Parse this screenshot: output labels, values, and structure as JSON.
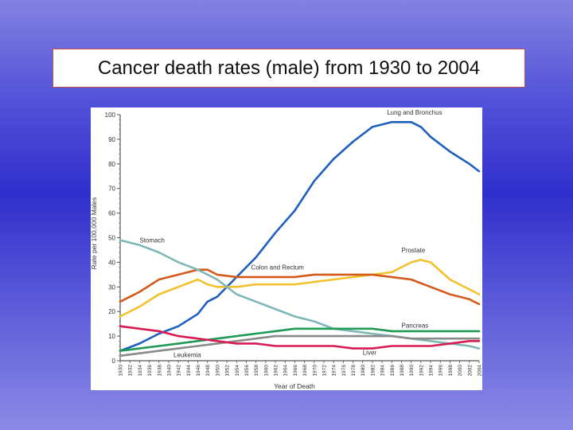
{
  "slide": {
    "title": "Cancer death rates (male) from 1930 to 2004"
  },
  "colors": {
    "background": "#4040d4",
    "title_border": "#c0504d",
    "lung": "#1f5fbf",
    "prostate": "#f2c12e",
    "colon": "#d45a1c",
    "stomach": "#7fb7b7",
    "pancreas": "#1f9a55",
    "leukemia": "#8a8a8a",
    "liver": "#d81b54"
  },
  "chart_data": {
    "type": "line",
    "xlabel": "Year of Death",
    "ylabel": "Rate per 100,000 Males",
    "xlim": [
      1930,
      2004
    ],
    "ylim": [
      0,
      100
    ],
    "y_ticks": [
      0,
      10,
      20,
      30,
      40,
      50,
      60,
      70,
      80,
      90,
      100
    ],
    "x_ticks": [
      "1930",
      "1932",
      "1934",
      "1936",
      "1938",
      "1940",
      "1942",
      "1944",
      "1946",
      "1948",
      "1950",
      "1952",
      "1954",
      "1956",
      "1958",
      "1960",
      "1962",
      "1964",
      "1966",
      "1968",
      "1970",
      "1972",
      "1974",
      "1976",
      "1978",
      "1980",
      "1982",
      "1984",
      "1986",
      "1988",
      "1990",
      "1992",
      "1994",
      "1996",
      "1998",
      "2000",
      "2002",
      "2004"
    ],
    "grid": false,
    "series": [
      {
        "name": "Lung and Bronchus",
        "color_key": "lung",
        "x": [
          1930,
          1934,
          1938,
          1942,
          1946,
          1948,
          1950,
          1954,
          1958,
          1962,
          1966,
          1970,
          1974,
          1978,
          1982,
          1986,
          1990,
          1992,
          1994,
          1998,
          2002,
          2004
        ],
        "y": [
          4,
          7,
          11,
          14,
          19,
          24,
          26,
          34,
          42,
          52,
          61,
          73,
          82,
          89,
          95,
          97,
          97,
          95,
          91,
          85,
          80,
          77
        ]
      },
      {
        "name": "Prostate",
        "color_key": "prostate",
        "x": [
          1930,
          1934,
          1938,
          1942,
          1946,
          1948,
          1950,
          1954,
          1958,
          1962,
          1966,
          1970,
          1974,
          1978,
          1982,
          1986,
          1990,
          1992,
          1994,
          1998,
          2002,
          2004
        ],
        "y": [
          18,
          22,
          27,
          30,
          33,
          31,
          30,
          30,
          31,
          31,
          31,
          32,
          33,
          34,
          35,
          36,
          40,
          41,
          40,
          33,
          29,
          27
        ]
      },
      {
        "name": "Colon and Rectum",
        "color_key": "colon",
        "x": [
          1930,
          1934,
          1938,
          1942,
          1946,
          1948,
          1950,
          1954,
          1958,
          1962,
          1966,
          1970,
          1974,
          1978,
          1982,
          1986,
          1990,
          1994,
          1998,
          2002,
          2004
        ],
        "y": [
          24,
          28,
          33,
          35,
          37,
          37,
          35,
          34,
          34,
          34,
          34,
          35,
          35,
          35,
          35,
          34,
          33,
          30,
          27,
          25,
          23
        ]
      },
      {
        "name": "Stomach",
        "color_key": "stomach",
        "x": [
          1930,
          1934,
          1938,
          1942,
          1946,
          1950,
          1954,
          1958,
          1962,
          1966,
          1970,
          1974,
          1978,
          1982,
          1986,
          1990,
          1994,
          1998,
          2002,
          2004
        ],
        "y": [
          49,
          47,
          44,
          40,
          37,
          33,
          27,
          24,
          21,
          18,
          16,
          13,
          12,
          11,
          10,
          9,
          8,
          7,
          6,
          5
        ]
      },
      {
        "name": "Pancreas",
        "color_key": "pancreas",
        "x": [
          1930,
          1934,
          1938,
          1942,
          1946,
          1950,
          1954,
          1958,
          1962,
          1966,
          1970,
          1974,
          1978,
          1982,
          1986,
          1990,
          1994,
          1998,
          2002,
          2004
        ],
        "y": [
          4,
          5,
          6,
          7,
          8,
          9,
          10,
          11,
          12,
          13,
          13,
          13,
          13,
          13,
          12,
          12,
          12,
          12,
          12,
          12
        ]
      },
      {
        "name": "Leukemia",
        "color_key": "leukemia",
        "x": [
          1930,
          1934,
          1938,
          1942,
          1946,
          1950,
          1954,
          1958,
          1962,
          1966,
          1970,
          1974,
          1978,
          1982,
          1986,
          1990,
          1994,
          1998,
          2002,
          2004
        ],
        "y": [
          2,
          3,
          4,
          5,
          6,
          7,
          8,
          9,
          10,
          10,
          10,
          10,
          10,
          10,
          10,
          9,
          9,
          9,
          9,
          9
        ]
      },
      {
        "name": "Liver",
        "color_key": "liver",
        "x": [
          1930,
          1934,
          1938,
          1942,
          1946,
          1950,
          1954,
          1958,
          1962,
          1966,
          1970,
          1974,
          1978,
          1982,
          1986,
          1990,
          1994,
          1998,
          2002,
          2004
        ],
        "y": [
          14,
          13,
          12,
          10,
          9,
          8,
          7,
          7,
          6,
          6,
          6,
          6,
          5,
          5,
          6,
          6,
          6,
          7,
          8,
          8
        ]
      }
    ],
    "labels": [
      {
        "series": "Lung and Bronchus",
        "text": "Lung and Bronchus",
        "x": 1985,
        "y": 100
      },
      {
        "series": "Stomach",
        "text": "Stomach",
        "x": 1934,
        "y": 48
      },
      {
        "series": "Prostate",
        "text": "Prostate",
        "x": 1988,
        "y": 44
      },
      {
        "series": "Colon and Rectum",
        "text": "Colon and Rectum",
        "x": 1957,
        "y": 37
      },
      {
        "series": "Pancreas",
        "text": "Pancreas",
        "x": 1988,
        "y": 13.5
      },
      {
        "series": "Leukemia",
        "text": "Leukemia",
        "x": 1941,
        "y": 1.5
      },
      {
        "series": "Liver",
        "text": "Liver",
        "x": 1980,
        "y": 2.5
      }
    ]
  }
}
